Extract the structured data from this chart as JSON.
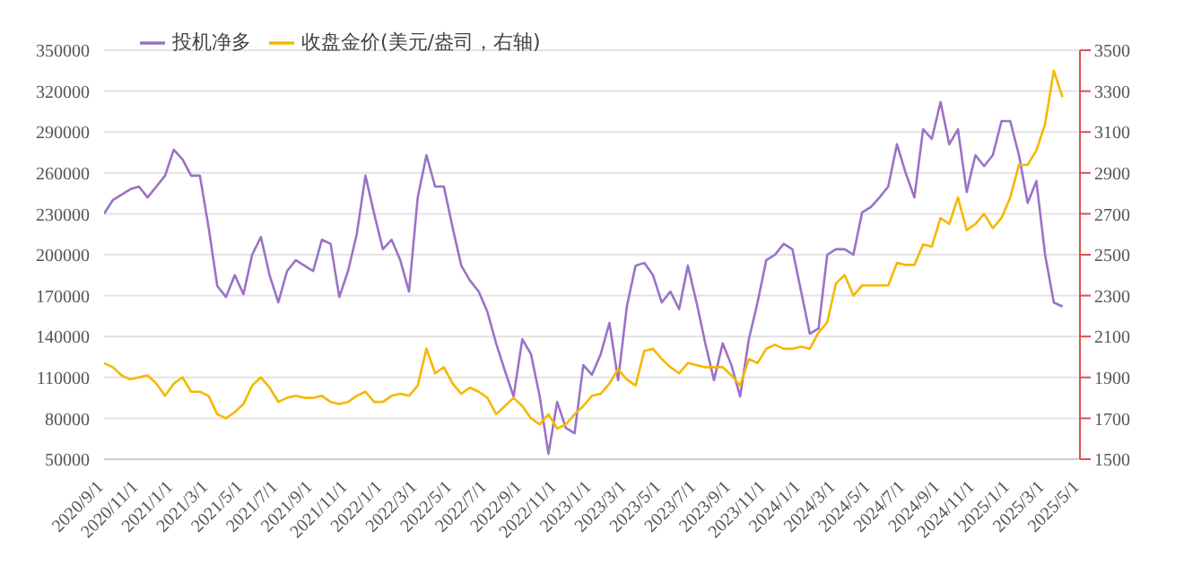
{
  "chart_data": {
    "type": "line",
    "categories": [
      "2020/9/1",
      null,
      null,
      null,
      "2020/11/1",
      null,
      null,
      null,
      "2021/1/1",
      null,
      null,
      null,
      "2021/3/1",
      null,
      null,
      null,
      "2021/5/1",
      null,
      null,
      null,
      "2021/7/1",
      null,
      null,
      null,
      "2021/9/1",
      null,
      null,
      null,
      "2021/11/1",
      null,
      null,
      null,
      "2022/1/1",
      null,
      null,
      null,
      "2022/3/1",
      null,
      null,
      null,
      "2022/5/1",
      null,
      null,
      null,
      "2022/7/1",
      null,
      null,
      null,
      "2022/9/1",
      null,
      null,
      null,
      "2022/11/1",
      null,
      null,
      null,
      "2023/1/1",
      null,
      null,
      null,
      "2023/3/1",
      null,
      null,
      null,
      "2023/5/1",
      null,
      null,
      null,
      "2023/7/1",
      null,
      null,
      null,
      "2023/9/1",
      null,
      null,
      null,
      "2023/11/1",
      null,
      null,
      null,
      "2024/1/1",
      null,
      null,
      null,
      "2024/3/1",
      null,
      null,
      null,
      "2024/5/1",
      null,
      null,
      null,
      "2024/7/1",
      null,
      null,
      null,
      "2024/9/1",
      null,
      null,
      null,
      "2024/11/1",
      null,
      null,
      null,
      "2025/1/1",
      null,
      null,
      null,
      "2025/3/1",
      null,
      null,
      null,
      "2025/5/1"
    ],
    "series": [
      {
        "name": "投机净多",
        "color": "#9b72c7",
        "values": [
          230000,
          240000,
          244000,
          248000,
          250000,
          242000,
          250000,
          258000,
          277000,
          270000,
          258000,
          258000,
          220000,
          177000,
          169000,
          185000,
          171000,
          200000,
          213000,
          185000,
          165000,
          188000,
          196000,
          192000,
          188000,
          211000,
          208000,
          169000,
          188000,
          215000,
          258000,
          230000,
          204000,
          211000,
          196000,
          173000,
          242000,
          273000,
          250000,
          250000,
          220000,
          192000,
          181000,
          173000,
          158000,
          135000,
          115000,
          96000,
          138000,
          127000,
          96000,
          54000,
          92000,
          73000,
          69000,
          119000,
          112000,
          127000,
          150000,
          108000,
          162000,
          192000,
          194000,
          185000,
          165000,
          173000,
          160000,
          192000,
          165000,
          135000,
          108000,
          135000,
          119000,
          96000,
          138000,
          165000,
          196000,
          200000,
          208000,
          204000,
          173000,
          142000,
          146000,
          200000,
          204000,
          204000,
          200000,
          231000,
          235000,
          242000,
          250000,
          281000,
          260000,
          242000,
          292000,
          285000,
          312000,
          281000,
          292000,
          246000,
          273000,
          265000,
          273000,
          298000,
          298000,
          273000,
          238000,
          254000,
          200000,
          165000,
          162000,
          null,
          null
        ]
      },
      {
        "name": "收盘金价(美元/盎司，右轴)",
        "color": "#f5b800",
        "axis": "y2",
        "values": [
          1970,
          1950,
          1910,
          1890,
          1900,
          1910,
          1870,
          1810,
          1870,
          1900,
          1830,
          1830,
          1810,
          1720,
          1700,
          1730,
          1770,
          1860,
          1900,
          1850,
          1780,
          1800,
          1810,
          1800,
          1800,
          1810,
          1780,
          1770,
          1780,
          1810,
          1830,
          1780,
          1780,
          1810,
          1820,
          1810,
          1860,
          2040,
          1920,
          1950,
          1870,
          1820,
          1850,
          1830,
          1800,
          1720,
          1760,
          1800,
          1760,
          1700,
          1670,
          1720,
          1650,
          1670,
          1720,
          1760,
          1810,
          1820,
          1870,
          1940,
          1890,
          1860,
          2030,
          2040,
          1990,
          1950,
          1920,
          1970,
          1960,
          1950,
          1950,
          1950,
          1910,
          1860,
          1990,
          1970,
          2040,
          2060,
          2040,
          2040,
          2050,
          2040,
          2120,
          2170,
          2360,
          2400,
          2300,
          2350,
          2350,
          2350,
          2350,
          2460,
          2450,
          2450,
          2550,
          2540,
          2680,
          2650,
          2780,
          2620,
          2650,
          2700,
          2630,
          2680,
          2780,
          2940,
          2940,
          3010,
          3140,
          3400,
          3270,
          null,
          null
        ]
      }
    ],
    "ylim": [
      50000,
      350000
    ],
    "yticks": [
      50000,
      80000,
      110000,
      140000,
      170000,
      200000,
      230000,
      260000,
      290000,
      320000,
      350000
    ],
    "y2lim": [
      1500,
      3500
    ],
    "y2ticks": [
      1500,
      1700,
      1900,
      2100,
      2300,
      2500,
      2700,
      2900,
      3100,
      3300,
      3500
    ],
    "grid": "y",
    "legend": "top left",
    "marker": "none",
    "line_style": "solid"
  }
}
